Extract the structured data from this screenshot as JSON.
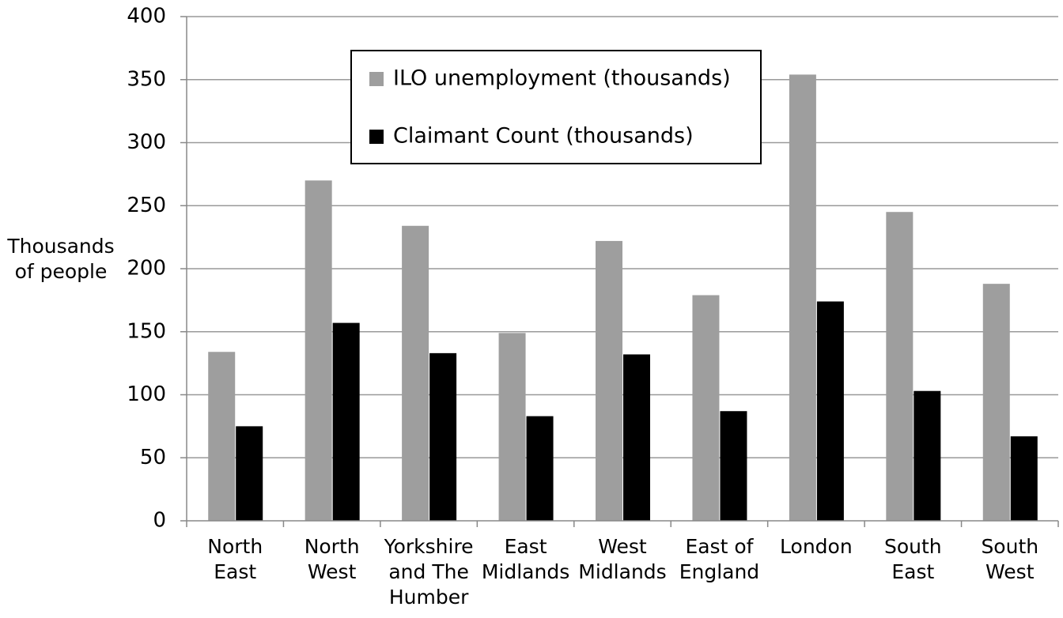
{
  "chart_data": {
    "type": "bar",
    "y_label": "Thousands of people",
    "categories": [
      "North East",
      "North West",
      "Yorkshire and The Humber",
      "East Midlands",
      "West Midlands",
      "East of England",
      "London",
      "South East",
      "South West"
    ],
    "series": [
      {
        "name": "ILO unemployment (thousands)",
        "color": "#9e9e9e",
        "values": [
          134,
          270,
          234,
          149,
          222,
          179,
          354,
          245,
          188
        ]
      },
      {
        "name": "Claimant Count (thousands)",
        "color": "#000000",
        "values": [
          75,
          157,
          133,
          83,
          132,
          87,
          174,
          103,
          67
        ]
      }
    ],
    "ylim": [
      0,
      400
    ],
    "yticks": [
      0,
      50,
      100,
      150,
      200,
      250,
      300,
      350,
      400
    ],
    "grid": true
  }
}
